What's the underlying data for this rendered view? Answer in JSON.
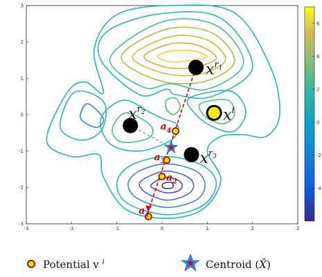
{
  "chart_data": {
    "type": "contour",
    "xlim": [
      -3,
      3
    ],
    "ylim": [
      -3,
      3
    ],
    "x_ticks": [
      "-3",
      "-2",
      "-1",
      "0",
      "1",
      "2",
      "3"
    ],
    "y_ticks": [
      "3",
      "2",
      "1",
      "0",
      "-1",
      "-2",
      "-3"
    ],
    "colorbar": {
      "range": [
        -6,
        7
      ],
      "ticks": [
        "6",
        "4",
        "2",
        "0",
        "-2",
        "-4"
      ],
      "tick_values": [
        6,
        4,
        2,
        0,
        -2,
        -4
      ],
      "colormap": "parula"
    },
    "colors": {
      "reference_point": "#000000",
      "query_point": "#ffee00",
      "potential_point_fill": "#ffee00",
      "potential_point_edge": "#c00000",
      "dashed_lines": "#e00000",
      "centroid_line": "#999999",
      "centroid_star": "#1e90ff",
      "centroid_star_center": "#e00000",
      "annotation_text": "#c00000"
    },
    "reference_points": [
      {
        "label": "x",
        "superscript": "r",
        "subscript": "1",
        "x": 0.75,
        "y": 1.3
      },
      {
        "label": "x",
        "superscript": "r",
        "subscript": "2",
        "x": -0.7,
        "y": -0.3
      },
      {
        "label": "x",
        "superscript": "r",
        "subscript": "3",
        "x": 0.65,
        "y": -1.1
      }
    ],
    "query_point": {
      "label": "x",
      "superscript": "i",
      "x": 1.15,
      "y": 0.05
    },
    "potential_points": [
      {
        "label": "a",
        "subscript": "1",
        "x": -0.3,
        "y": -2.8
      },
      {
        "label": "a",
        "subscript": "2",
        "x": 0.0,
        "y": -1.7
      },
      {
        "label": "a",
        "subscript": "3",
        "x": 0.1,
        "y": -1.25
      },
      {
        "label": "a",
        "subscript": "4",
        "x": 0.3,
        "y": -0.45
      }
    ],
    "centroid": {
      "x": 0.2,
      "y": -0.9
    },
    "legend": [
      {
        "marker": "circle",
        "text": "Potential v",
        "superscript": "i"
      },
      {
        "marker": "star",
        "text": "Centroid (",
        "symbol": "X̄",
        "text_after": ")"
      }
    ],
    "contour_levels": [
      {
        "level": 6.5,
        "color": "#f9d02a",
        "pts": [
          [
            -0.1,
            1.6
          ],
          [
            0.2,
            1.45
          ],
          [
            0.7,
            1.5
          ],
          [
            1.0,
            1.6
          ],
          [
            0.7,
            1.75
          ],
          [
            0.2,
            1.75
          ]
        ]
      },
      {
        "level": 5.5,
        "color": "#f2a040",
        "pts": [
          [
            -0.4,
            1.6
          ],
          [
            0.1,
            1.3
          ],
          [
            0.7,
            1.3
          ],
          [
            1.2,
            1.55
          ],
          [
            0.8,
            1.9
          ],
          [
            0.2,
            1.95
          ]
        ]
      },
      {
        "level": 4.5,
        "color": "#cfba30",
        "pts": [
          [
            -0.65,
            1.6
          ],
          [
            0.0,
            1.15
          ],
          [
            0.8,
            1.1
          ],
          [
            1.4,
            1.5
          ],
          [
            1.0,
            2.05
          ],
          [
            0.2,
            2.15
          ]
        ]
      },
      {
        "level": 3.5,
        "color": "#a8c040",
        "pts": [
          [
            -0.9,
            1.6
          ],
          [
            -0.1,
            0.95
          ],
          [
            0.9,
            0.9
          ],
          [
            1.6,
            1.45
          ],
          [
            1.1,
            2.25
          ],
          [
            0.1,
            2.35
          ]
        ]
      },
      {
        "level": 2.5,
        "color": "#48c08a",
        "pts": [
          [
            -1.15,
            1.55
          ],
          [
            -0.4,
            0.75
          ],
          [
            0.2,
            0.85
          ],
          [
            1.0,
            0.7
          ],
          [
            1.8,
            1.4
          ],
          [
            1.2,
            2.45
          ],
          [
            0.0,
            2.55
          ]
        ]
      },
      {
        "level": 1.2,
        "color": "#26b8b8",
        "pts": [
          [
            -1.35,
            1.5
          ],
          [
            -0.5,
            0.55
          ],
          [
            0.1,
            0.7
          ],
          [
            0.3,
            0.55
          ],
          [
            1.1,
            0.5
          ],
          [
            2.0,
            1.3
          ],
          [
            1.3,
            2.65
          ],
          [
            0.0,
            2.78
          ],
          [
            -1.2,
            2.3
          ]
        ]
      },
      {
        "level": 0.5,
        "color": "#1fb5c8",
        "pts": [
          [
            -2.55,
            -0.7
          ],
          [
            -2.1,
            0.6
          ],
          [
            -1.7,
            0.9
          ],
          [
            -1.3,
            0.6
          ],
          [
            -1.5,
            1.8
          ],
          [
            -1.0,
            2.75
          ],
          [
            0.2,
            3.0
          ],
          [
            1.6,
            2.8
          ],
          [
            2.4,
            1.3
          ],
          [
            2.6,
            0.0
          ],
          [
            2.3,
            -0.6
          ],
          [
            1.8,
            -0.55
          ],
          [
            1.3,
            -0.6
          ],
          [
            1.0,
            -1.0
          ],
          [
            1.3,
            -1.8
          ],
          [
            0.9,
            -2.6
          ],
          [
            0.1,
            -2.85
          ],
          [
            -0.8,
            -2.6
          ],
          [
            -1.3,
            -1.7
          ],
          [
            -1.4,
            -1.1
          ],
          [
            -2.0,
            -1.15
          ]
        ]
      },
      {
        "level": 1.0,
        "color": "#30a8d8",
        "pts": [
          [
            -2.25,
            -0.35
          ],
          [
            -2.0,
            0.55
          ],
          [
            -1.6,
            0.6
          ],
          [
            -1.25,
            0.25
          ],
          [
            -1.35,
            -0.45
          ],
          [
            -1.8,
            -0.7
          ]
        ]
      },
      {
        "level": 1.5,
        "color": "#3a82e0",
        "pts": [
          [
            -1.65,
            0.3
          ],
          [
            -1.3,
            -0.1
          ],
          [
            -1.45,
            -0.35
          ],
          [
            -1.8,
            -0.1
          ]
        ]
      },
      {
        "level": 1.5,
        "color": "#26b8b8",
        "pts": [
          [
            0.6,
            0.45
          ],
          [
            1.5,
            0.65
          ],
          [
            1.85,
            0.1
          ],
          [
            1.6,
            -0.45
          ],
          [
            1.15,
            -0.35
          ],
          [
            0.75,
            0.0
          ]
        ]
      },
      {
        "level": 3.0,
        "color": "#48c08a",
        "pts": [
          [
            0.85,
            0.3
          ],
          [
            1.45,
            0.4
          ],
          [
            1.6,
            0.0
          ],
          [
            1.35,
            -0.25
          ],
          [
            0.95,
            -0.05
          ]
        ]
      },
      {
        "level": 2.0,
        "color": "#48c08a",
        "pts": [
          [
            0.1,
            0.4
          ],
          [
            0.3,
            0.45
          ],
          [
            0.4,
            0.2
          ],
          [
            0.25,
            0.0
          ],
          [
            0.1,
            0.15
          ]
        ]
      },
      {
        "level": 1.0,
        "color": "#26b8b8",
        "pts": [
          [
            -0.25,
            0.05
          ],
          [
            -0.85,
            0.4
          ],
          [
            -1.35,
            -0.1
          ],
          [
            -1.15,
            -0.8
          ],
          [
            -0.5,
            -1.0
          ],
          [
            0.2,
            -0.7
          ],
          [
            0.35,
            -0.3
          ],
          [
            0.0,
            -0.1
          ]
        ]
      },
      {
        "level": 2.0,
        "color": "#48c08a",
        "pts": [
          [
            -0.25,
            -0.3
          ],
          [
            -0.8,
            0.05
          ],
          [
            -1.1,
            -0.4
          ],
          [
            -0.9,
            -0.75
          ],
          [
            -0.3,
            -0.65
          ]
        ]
      },
      {
        "level": -1.0,
        "color": "#26b8b8",
        "pts": [
          [
            -0.7,
            -1.4
          ],
          [
            0.1,
            -1.15
          ],
          [
            0.9,
            -1.4
          ],
          [
            1.2,
            -1.9
          ],
          [
            0.9,
            -2.5
          ],
          [
            0.1,
            -2.75
          ],
          [
            -0.75,
            -2.45
          ],
          [
            -1.0,
            -1.9
          ]
        ]
      },
      {
        "level": -2.0,
        "color": "#3a82e0",
        "pts": [
          [
            -0.5,
            -1.55
          ],
          [
            0.1,
            -1.35
          ],
          [
            0.75,
            -1.55
          ],
          [
            0.95,
            -1.95
          ],
          [
            0.75,
            -2.35
          ],
          [
            0.1,
            -2.55
          ],
          [
            -0.55,
            -2.3
          ],
          [
            -0.75,
            -1.9
          ]
        ]
      },
      {
        "level": -3.0,
        "color": "#4a62d8",
        "pts": [
          [
            -0.3,
            -1.7
          ],
          [
            0.1,
            -1.55
          ],
          [
            0.55,
            -1.7
          ],
          [
            0.7,
            -1.95
          ],
          [
            0.55,
            -2.2
          ],
          [
            0.1,
            -2.35
          ],
          [
            -0.35,
            -2.15
          ],
          [
            -0.5,
            -1.9
          ]
        ]
      },
      {
        "level": -4.0,
        "color": "#5648c0",
        "pts": [
          [
            -0.1,
            -1.8
          ],
          [
            0.1,
            -1.72
          ],
          [
            0.35,
            -1.8
          ],
          [
            0.45,
            -1.95
          ],
          [
            0.35,
            -2.1
          ],
          [
            0.1,
            -2.15
          ],
          [
            -0.15,
            -2.05
          ],
          [
            -0.25,
            -1.95
          ]
        ]
      },
      {
        "level": -5.0,
        "color": "#3f2d9a",
        "pts": [
          [
            0.05,
            -1.88
          ],
          [
            0.2,
            -1.86
          ],
          [
            0.25,
            -1.95
          ],
          [
            0.2,
            -2.02
          ],
          [
            0.05,
            -2.02
          ],
          [
            0.0,
            -1.95
          ]
        ]
      }
    ]
  }
}
